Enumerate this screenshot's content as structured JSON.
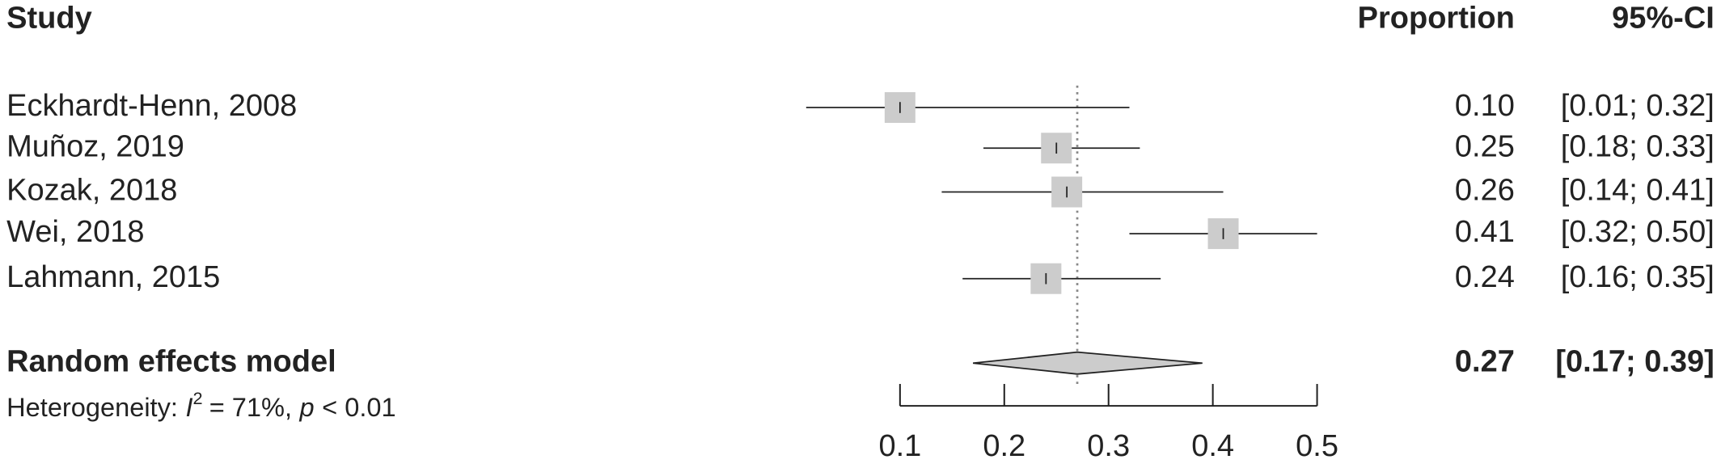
{
  "chart_data": {
    "type": "forest",
    "headers": {
      "study": "Study",
      "estimate": "Proportion",
      "ci": "95%-CI"
    },
    "categories": [
      "Eckhardt-Henn, 2008",
      "Muñoz, 2019",
      "Kozak, 2018",
      "Wei, 2018",
      "Lahmann, 2015"
    ],
    "values": [
      0.1,
      0.25,
      0.26,
      0.41,
      0.24
    ],
    "value_labels": [
      "0.10",
      "0.25",
      "0.26",
      "0.41",
      "0.24"
    ],
    "lower": [
      0.01,
      0.18,
      0.14,
      0.32,
      0.16
    ],
    "upper": [
      0.32,
      0.33,
      0.41,
      0.5,
      0.35
    ],
    "ci_labels": [
      "[0.01; 0.32]",
      "[0.18; 0.33]",
      "[0.14; 0.41]",
      "[0.32; 0.50]",
      "[0.16; 0.35]"
    ],
    "pooled": {
      "name": "Random effects model",
      "value": 0.27,
      "value_label": "0.27",
      "lower": 0.17,
      "upper": 0.39,
      "ci_label": "[0.17; 0.39]"
    },
    "heterogeneity": [
      "Heterogeneity:",
      "I",
      "2",
      "= 71%,",
      "p",
      "< 0.01"
    ],
    "xlim": [
      0.1,
      0.5
    ],
    "xticks": [
      0.1,
      0.2,
      0.3,
      0.4,
      0.5
    ],
    "color": "#cccccc"
  }
}
